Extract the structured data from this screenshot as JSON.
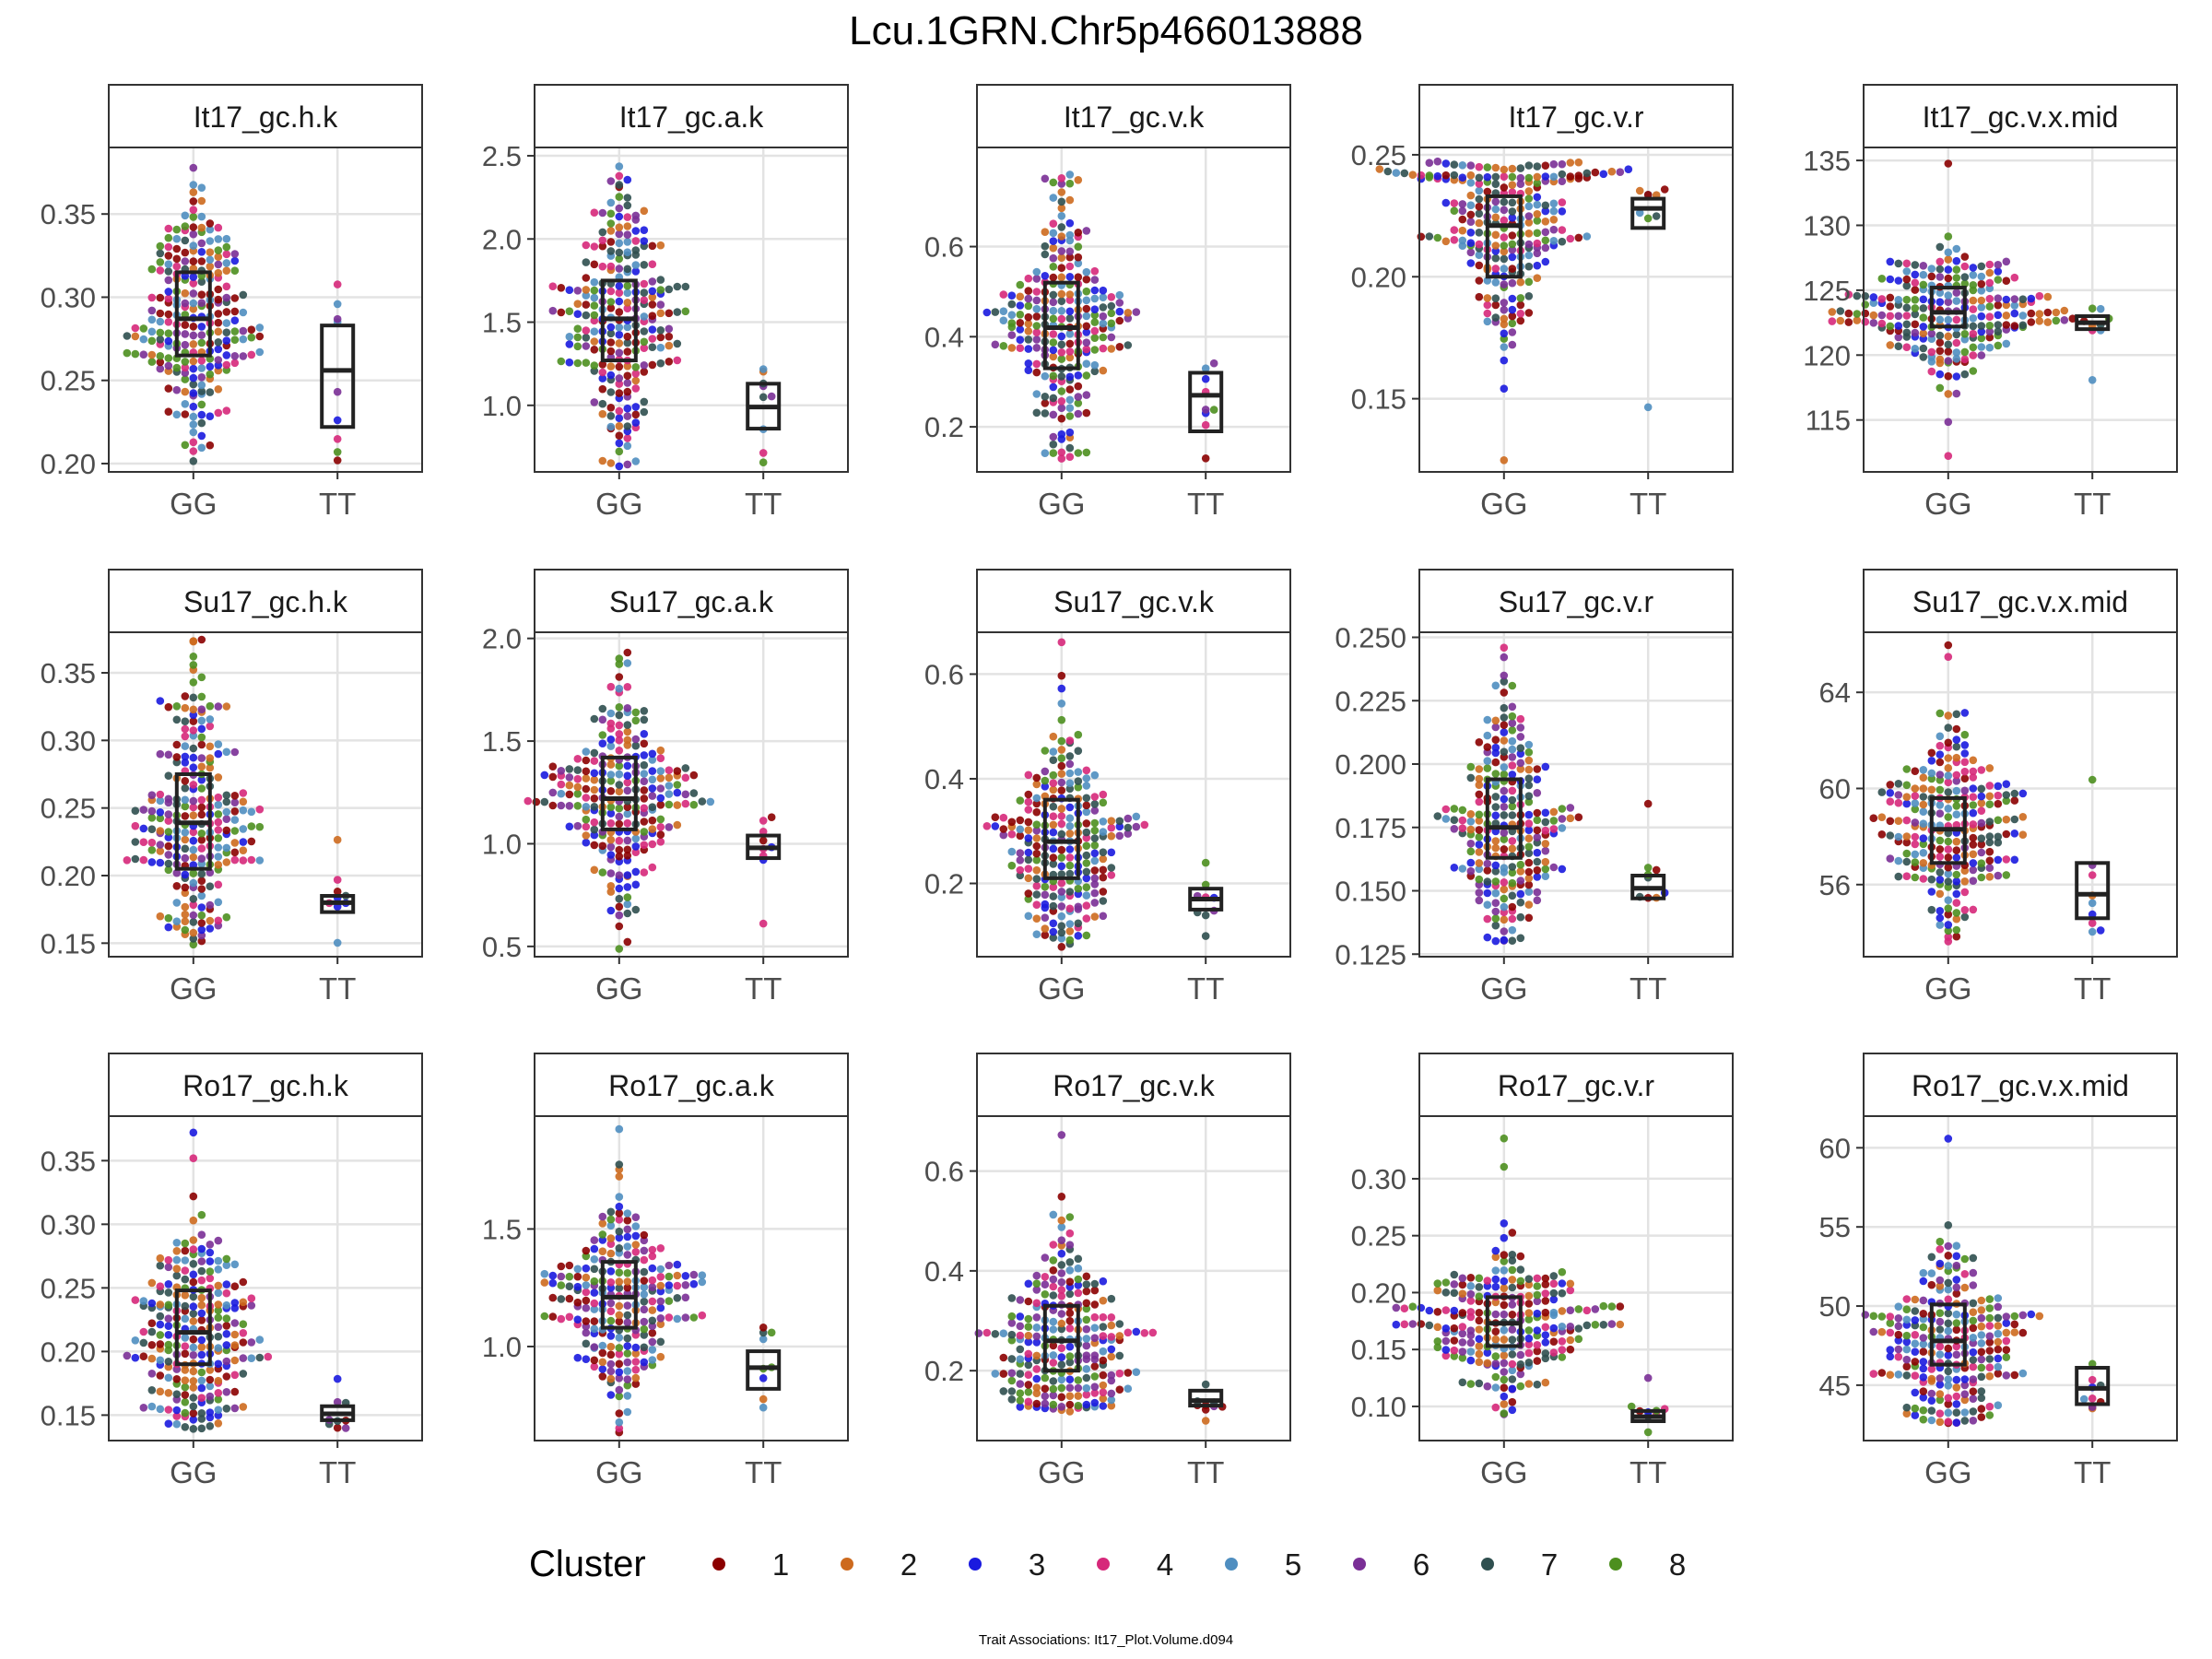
{
  "chart_data": {
    "type": "scatter",
    "title": "Lcu.1GRN.Chr5p466013888",
    "caption": "Trait Associations: It17_Plot.Volume.d094",
    "legend": {
      "title": "Cluster",
      "placement": "bottom",
      "items": [
        {
          "label": "1",
          "color": "#8b0000"
        },
        {
          "label": "2",
          "color": "#cd6a1e"
        },
        {
          "label": "3",
          "color": "#1a1adf"
        },
        {
          "label": "4",
          "color": "#d6287a"
        },
        {
          "label": "5",
          "color": "#4f8ec0"
        },
        {
          "label": "6",
          "color": "#7a2f96"
        },
        {
          "label": "7",
          "color": "#2f4f4f"
        },
        {
          "label": "8",
          "color": "#4d8f1f"
        }
      ]
    },
    "categories": [
      "GG",
      "TT"
    ],
    "panels": [
      {
        "title": "It17_gc.h.k",
        "ylim": [
          0.195,
          0.39
        ],
        "yticks": [
          0.2,
          0.25,
          0.3,
          0.35
        ],
        "tickLabels": [
          "0.20",
          "0.25",
          "0.30",
          "0.35"
        ],
        "groups": [
          {
            "q1": 0.265,
            "median": 0.287,
            "q3": 0.315,
            "min": 0.202,
            "max": 0.378,
            "n": 240
          },
          {
            "q1": 0.222,
            "median": 0.256,
            "q3": 0.283,
            "min": 0.202,
            "max": 0.307,
            "n": 9
          }
        ]
      },
      {
        "title": "It17_gc.a.k",
        "ylim": [
          0.6,
          2.55
        ],
        "yticks": [
          1.0,
          1.5,
          2.0,
          2.5
        ],
        "tickLabels": [
          "1.0",
          "1.5",
          "2.0",
          "2.5"
        ],
        "groups": [
          {
            "q1": 1.27,
            "median": 1.52,
            "q3": 1.75,
            "min": 0.63,
            "max": 2.43,
            "n": 240
          },
          {
            "q1": 0.86,
            "median": 0.99,
            "q3": 1.13,
            "min": 0.66,
            "max": 1.22,
            "n": 9
          }
        ]
      },
      {
        "title": "It17_gc.v.k",
        "ylim": [
          0.1,
          0.82
        ],
        "yticks": [
          0.2,
          0.4,
          0.6
        ],
        "tickLabels": [
          "0.2",
          "0.4",
          "0.6"
        ],
        "groups": [
          {
            "q1": 0.33,
            "median": 0.42,
            "q3": 0.52,
            "min": 0.13,
            "max": 0.76,
            "n": 240
          },
          {
            "q1": 0.19,
            "median": 0.27,
            "q3": 0.32,
            "min": 0.13,
            "max": 0.34,
            "n": 9
          }
        ]
      },
      {
        "title": "It17_gc.v.r",
        "ylim": [
          0.12,
          0.253
        ],
        "yticks": [
          0.15,
          0.2,
          0.25
        ],
        "tickLabels": [
          "0.15",
          "0.20",
          "0.25"
        ],
        "groups": [
          {
            "q1": 0.2,
            "median": 0.221,
            "q3": 0.233,
            "min": 0.125,
            "max": 0.247,
            "n": 240
          },
          {
            "q1": 0.22,
            "median": 0.228,
            "q3": 0.232,
            "min": 0.147,
            "max": 0.236,
            "n": 9
          }
        ]
      },
      {
        "title": "It17_gc.v.x.mid",
        "ylim": [
          111,
          136
        ],
        "yticks": [
          115,
          120,
          125,
          130,
          135
        ],
        "tickLabels": [
          "115",
          "120",
          "125",
          "130",
          "135"
        ],
        "groups": [
          {
            "q1": 122.2,
            "median": 123.3,
            "q3": 125.2,
            "min": 112.3,
            "max": 134.8,
            "n": 240
          },
          {
            "q1": 122.0,
            "median": 122.5,
            "q3": 123.0,
            "min": 118.0,
            "max": 123.6,
            "n": 9
          }
        ]
      },
      {
        "title": "Su17_gc.h.k",
        "ylim": [
          0.14,
          0.38
        ],
        "yticks": [
          0.15,
          0.2,
          0.25,
          0.3,
          0.35
        ],
        "tickLabels": [
          "0.15",
          "0.20",
          "0.25",
          "0.30",
          "0.35"
        ],
        "groups": [
          {
            "q1": 0.205,
            "median": 0.239,
            "q3": 0.275,
            "min": 0.15,
            "max": 0.374,
            "n": 240
          },
          {
            "q1": 0.173,
            "median": 0.18,
            "q3": 0.185,
            "min": 0.151,
            "max": 0.226,
            "n": 9
          }
        ]
      },
      {
        "title": "Su17_gc.a.k",
        "ylim": [
          0.45,
          2.03
        ],
        "yticks": [
          0.5,
          1.0,
          1.5,
          2.0
        ],
        "tickLabels": [
          "0.5",
          "1.0",
          "1.5",
          "2.0"
        ],
        "groups": [
          {
            "q1": 1.07,
            "median": 1.22,
            "q3": 1.42,
            "min": 0.49,
            "max": 1.93,
            "n": 240
          },
          {
            "q1": 0.93,
            "median": 0.98,
            "q3": 1.04,
            "min": 0.61,
            "max": 1.13,
            "n": 9
          }
        ]
      },
      {
        "title": "Su17_gc.v.k",
        "ylim": [
          0.06,
          0.68
        ],
        "yticks": [
          0.2,
          0.4,
          0.6
        ],
        "tickLabels": [
          "0.2",
          "0.4",
          "0.6"
        ],
        "groups": [
          {
            "q1": 0.21,
            "median": 0.28,
            "q3": 0.36,
            "min": 0.08,
            "max": 0.66,
            "n": 240
          },
          {
            "q1": 0.15,
            "median": 0.17,
            "q3": 0.19,
            "min": 0.1,
            "max": 0.24,
            "n": 9
          }
        ]
      },
      {
        "title": "Su17_gc.v.r",
        "ylim": [
          0.124,
          0.252
        ],
        "yticks": [
          0.125,
          0.15,
          0.175,
          0.2,
          0.225,
          0.25
        ],
        "tickLabels": [
          "0.125",
          "0.150",
          "0.175",
          "0.200",
          "0.225",
          "0.250"
        ],
        "groups": [
          {
            "q1": 0.163,
            "median": 0.175,
            "q3": 0.194,
            "min": 0.13,
            "max": 0.246,
            "n": 240
          },
          {
            "q1": 0.147,
            "median": 0.151,
            "q3": 0.156,
            "min": 0.147,
            "max": 0.184,
            "n": 9
          }
        ]
      },
      {
        "title": "Su17_gc.v.x.mid",
        "ylim": [
          53,
          66.5
        ],
        "yticks": [
          56,
          60,
          64
        ],
        "tickLabels": [
          "56",
          "60",
          "64"
        ],
        "groups": [
          {
            "q1": 56.9,
            "median": 58.3,
            "q3": 59.6,
            "min": 53.6,
            "max": 66.0,
            "n": 240
          },
          {
            "q1": 54.6,
            "median": 55.6,
            "q3": 56.9,
            "min": 54.0,
            "max": 60.4,
            "n": 9
          }
        ]
      },
      {
        "title": "Ro17_gc.h.k",
        "ylim": [
          0.13,
          0.385
        ],
        "yticks": [
          0.15,
          0.2,
          0.25,
          0.3,
          0.35
        ],
        "tickLabels": [
          "0.15",
          "0.20",
          "0.25",
          "0.30",
          "0.35"
        ],
        "groups": [
          {
            "q1": 0.19,
            "median": 0.215,
            "q3": 0.248,
            "min": 0.14,
            "max": 0.373,
            "n": 240
          },
          {
            "q1": 0.146,
            "median": 0.151,
            "q3": 0.157,
            "min": 0.139,
            "max": 0.179,
            "n": 9
          }
        ]
      },
      {
        "title": "Ro17_gc.a.k",
        "ylim": [
          0.6,
          1.98
        ],
        "yticks": [
          1.0,
          1.5
        ],
        "tickLabels": [
          "1.0",
          "1.5"
        ],
        "groups": [
          {
            "q1": 1.08,
            "median": 1.21,
            "q3": 1.36,
            "min": 0.63,
            "max": 1.92,
            "n": 240
          },
          {
            "q1": 0.82,
            "median": 0.91,
            "q3": 0.98,
            "min": 0.74,
            "max": 1.08,
            "n": 9
          }
        ]
      },
      {
        "title": "Ro17_gc.v.k",
        "ylim": [
          0.06,
          0.71
        ],
        "yticks": [
          0.2,
          0.4,
          0.6
        ],
        "tickLabels": [
          "0.2",
          "0.4",
          "0.6"
        ],
        "groups": [
          {
            "q1": 0.2,
            "median": 0.26,
            "q3": 0.33,
            "min": 0.12,
            "max": 0.67,
            "n": 240
          },
          {
            "q1": 0.13,
            "median": 0.14,
            "q3": 0.16,
            "min": 0.1,
            "max": 0.17,
            "n": 9
          }
        ]
      },
      {
        "title": "Ro17_gc.v.r",
        "ylim": [
          0.07,
          0.355
        ],
        "yticks": [
          0.1,
          0.15,
          0.2,
          0.25,
          0.3
        ],
        "tickLabels": [
          "0.10",
          "0.15",
          "0.20",
          "0.25",
          "0.30"
        ],
        "groups": [
          {
            "q1": 0.153,
            "median": 0.173,
            "q3": 0.196,
            "min": 0.093,
            "max": 0.336,
            "n": 240
          },
          {
            "q1": 0.087,
            "median": 0.091,
            "q3": 0.096,
            "min": 0.078,
            "max": 0.126,
            "n": 9
          }
        ]
      },
      {
        "title": "Ro17_gc.v.x.mid",
        "ylim": [
          41.5,
          62
        ],
        "yticks": [
          45,
          50,
          55,
          60
        ],
        "tickLabels": [
          "45",
          "50",
          "55",
          "60"
        ],
        "groups": [
          {
            "q1": 46.3,
            "median": 47.8,
            "q3": 50.1,
            "min": 42.6,
            "max": 60.5,
            "n": 240
          },
          {
            "q1": 43.8,
            "median": 44.8,
            "q3": 46.1,
            "min": 43.6,
            "max": 46.4,
            "n": 9
          }
        ]
      }
    ]
  }
}
